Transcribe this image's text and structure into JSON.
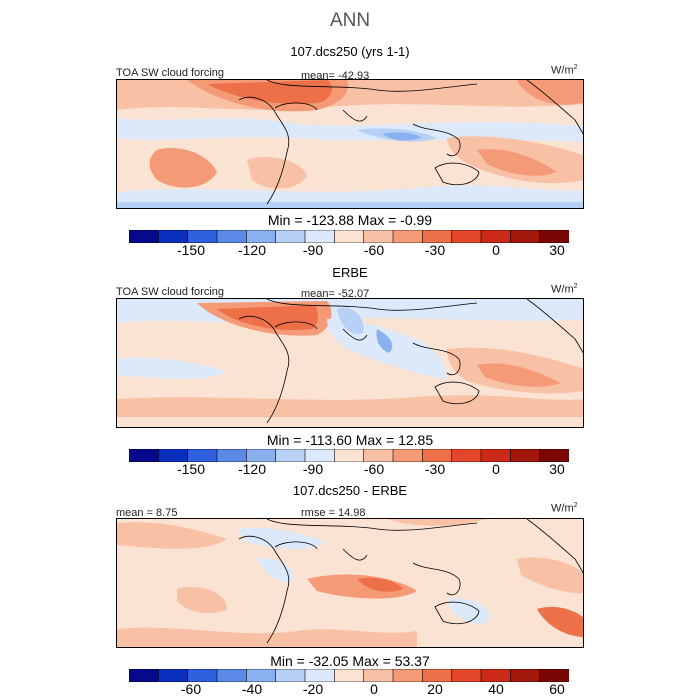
{
  "suptitle": "ANN",
  "colors": [
    "#08088c",
    "#0a2fbf",
    "#2f5fdc",
    "#5b8ae6",
    "#89b0ef",
    "#b7d0f5",
    "#dce9fb",
    "#fbe3d4",
    "#f8c1a6",
    "#f49a76",
    "#ee7049",
    "#e3472a",
    "#cb2a18",
    "#a3160c",
    "#7a0606"
  ],
  "panels": [
    {
      "title": "107.dcs250 (yrs 1-1)",
      "left_label": "TOA SW cloud forcing",
      "center_label": "mean= -42.93",
      "unit_base": "W/m",
      "unit_exp": "2",
      "min_max": "Min = -123.88 Max =   -0.99",
      "ticks": [
        "-150",
        "-120",
        "-90",
        "-60",
        "-30",
        "0",
        "30"
      ]
    },
    {
      "title": "ERBE",
      "left_label": "TOA SW cloud forcing",
      "center_label": "mean= -52.07",
      "unit_base": "W/m",
      "unit_exp": "2",
      "min_max": "Min = -113.60 Max =  12.85",
      "ticks": [
        "-150",
        "-120",
        "-90",
        "-60",
        "-30",
        "0",
        "30"
      ]
    },
    {
      "title": "107.dcs250 - ERBE",
      "left_label": "mean =   8.75",
      "center_label": "rmse =  14.98",
      "unit_base": "W/m",
      "unit_exp": "2",
      "min_max": "Min = -32.05 Max =  53.37",
      "ticks": [
        "-60",
        "-40",
        "-20",
        "0",
        "20",
        "40",
        "60"
      ]
    }
  ],
  "chart_data": [
    {
      "type": "heatmap",
      "title": "107.dcs250 (yrs 1-1)",
      "variable": "TOA SW cloud forcing",
      "units": "W/m2",
      "mean": -42.93,
      "min": -123.88,
      "max": -0.99,
      "colorbar_range": [
        -165,
        45
      ],
      "colorbar_ticks": [
        -150,
        -120,
        -90,
        -60,
        -30,
        0,
        30
      ]
    },
    {
      "type": "heatmap",
      "title": "ERBE",
      "variable": "TOA SW cloud forcing",
      "units": "W/m2",
      "mean": -52.07,
      "min": -113.6,
      "max": 12.85,
      "colorbar_range": [
        -165,
        45
      ],
      "colorbar_ticks": [
        -150,
        -120,
        -90,
        -60,
        -30,
        0,
        30
      ]
    },
    {
      "type": "heatmap",
      "title": "107.dcs250 - ERBE",
      "units": "W/m2",
      "mean": 8.75,
      "rmse": 14.98,
      "min": -32.05,
      "max": 53.37,
      "colorbar_range": [
        -70,
        80
      ],
      "colorbar_ticks": [
        -60,
        -40,
        -20,
        0,
        20,
        40,
        60
      ]
    }
  ]
}
